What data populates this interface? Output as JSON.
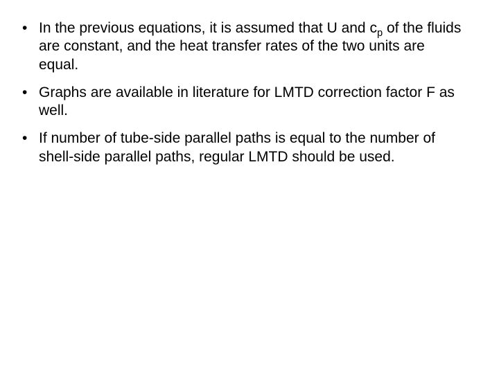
{
  "slide": {
    "background_color": "#ffffff",
    "text_color": "#000000",
    "font_family": "Arial",
    "font_size_pt": 16,
    "bullets": [
      {
        "pre": "In the previous equations, it is assumed that U and c",
        "sub": "p",
        "post": " of the fluids are constant, and the heat transfer rates of the two units are equal."
      },
      {
        "pre": "Graphs are available in literature for LMTD correction factor F as well.",
        "sub": "",
        "post": ""
      },
      {
        "pre": "If number of tube-side parallel paths is equal to the number of shell-side parallel paths, regular LMTD should be used.",
        "sub": "",
        "post": ""
      }
    ]
  }
}
